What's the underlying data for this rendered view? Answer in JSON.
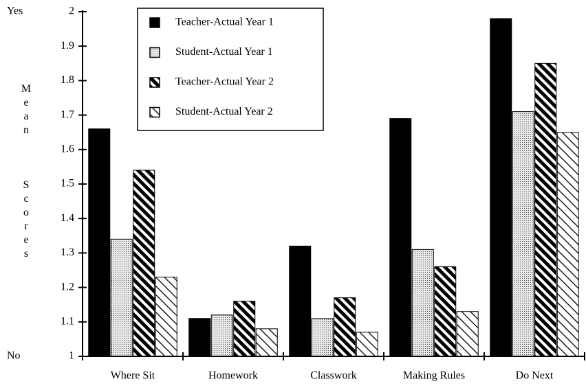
{
  "chart_data": {
    "type": "bar",
    "y_label": "Mean Scores",
    "y_top_annotation": "Yes",
    "y_bottom_annotation": "No",
    "categories": [
      "Where Sit",
      "Homework",
      "Classwork",
      "Making Rules",
      "Do Next"
    ],
    "series": [
      {
        "name": "Teacher-Actual Year 1",
        "color": "#000000",
        "pattern": "solid",
        "values": [
          1.66,
          1.11,
          1.32,
          1.69,
          1.98
        ]
      },
      {
        "name": "Student-Actual Year 1",
        "color": "#bdbdbd",
        "pattern": "dots",
        "values": [
          1.34,
          1.12,
          1.11,
          1.31,
          1.71
        ]
      },
      {
        "name": "Teacher-Actual Year 2",
        "color": "#000000",
        "pattern": "heavy-stripes",
        "values": [
          1.54,
          1.16,
          1.17,
          1.26,
          1.85
        ]
      },
      {
        "name": "Student-Actual Year 2",
        "color": "#000000",
        "pattern": "light-stripes",
        "values": [
          1.23,
          1.08,
          1.07,
          1.13,
          1.65
        ]
      }
    ],
    "ylim": [
      1,
      2
    ],
    "yticks": [
      1,
      1.1,
      1.2,
      1.3,
      1.4,
      1.5,
      1.6,
      1.7,
      1.8,
      1.9,
      2
    ],
    "legend": "top-center"
  }
}
